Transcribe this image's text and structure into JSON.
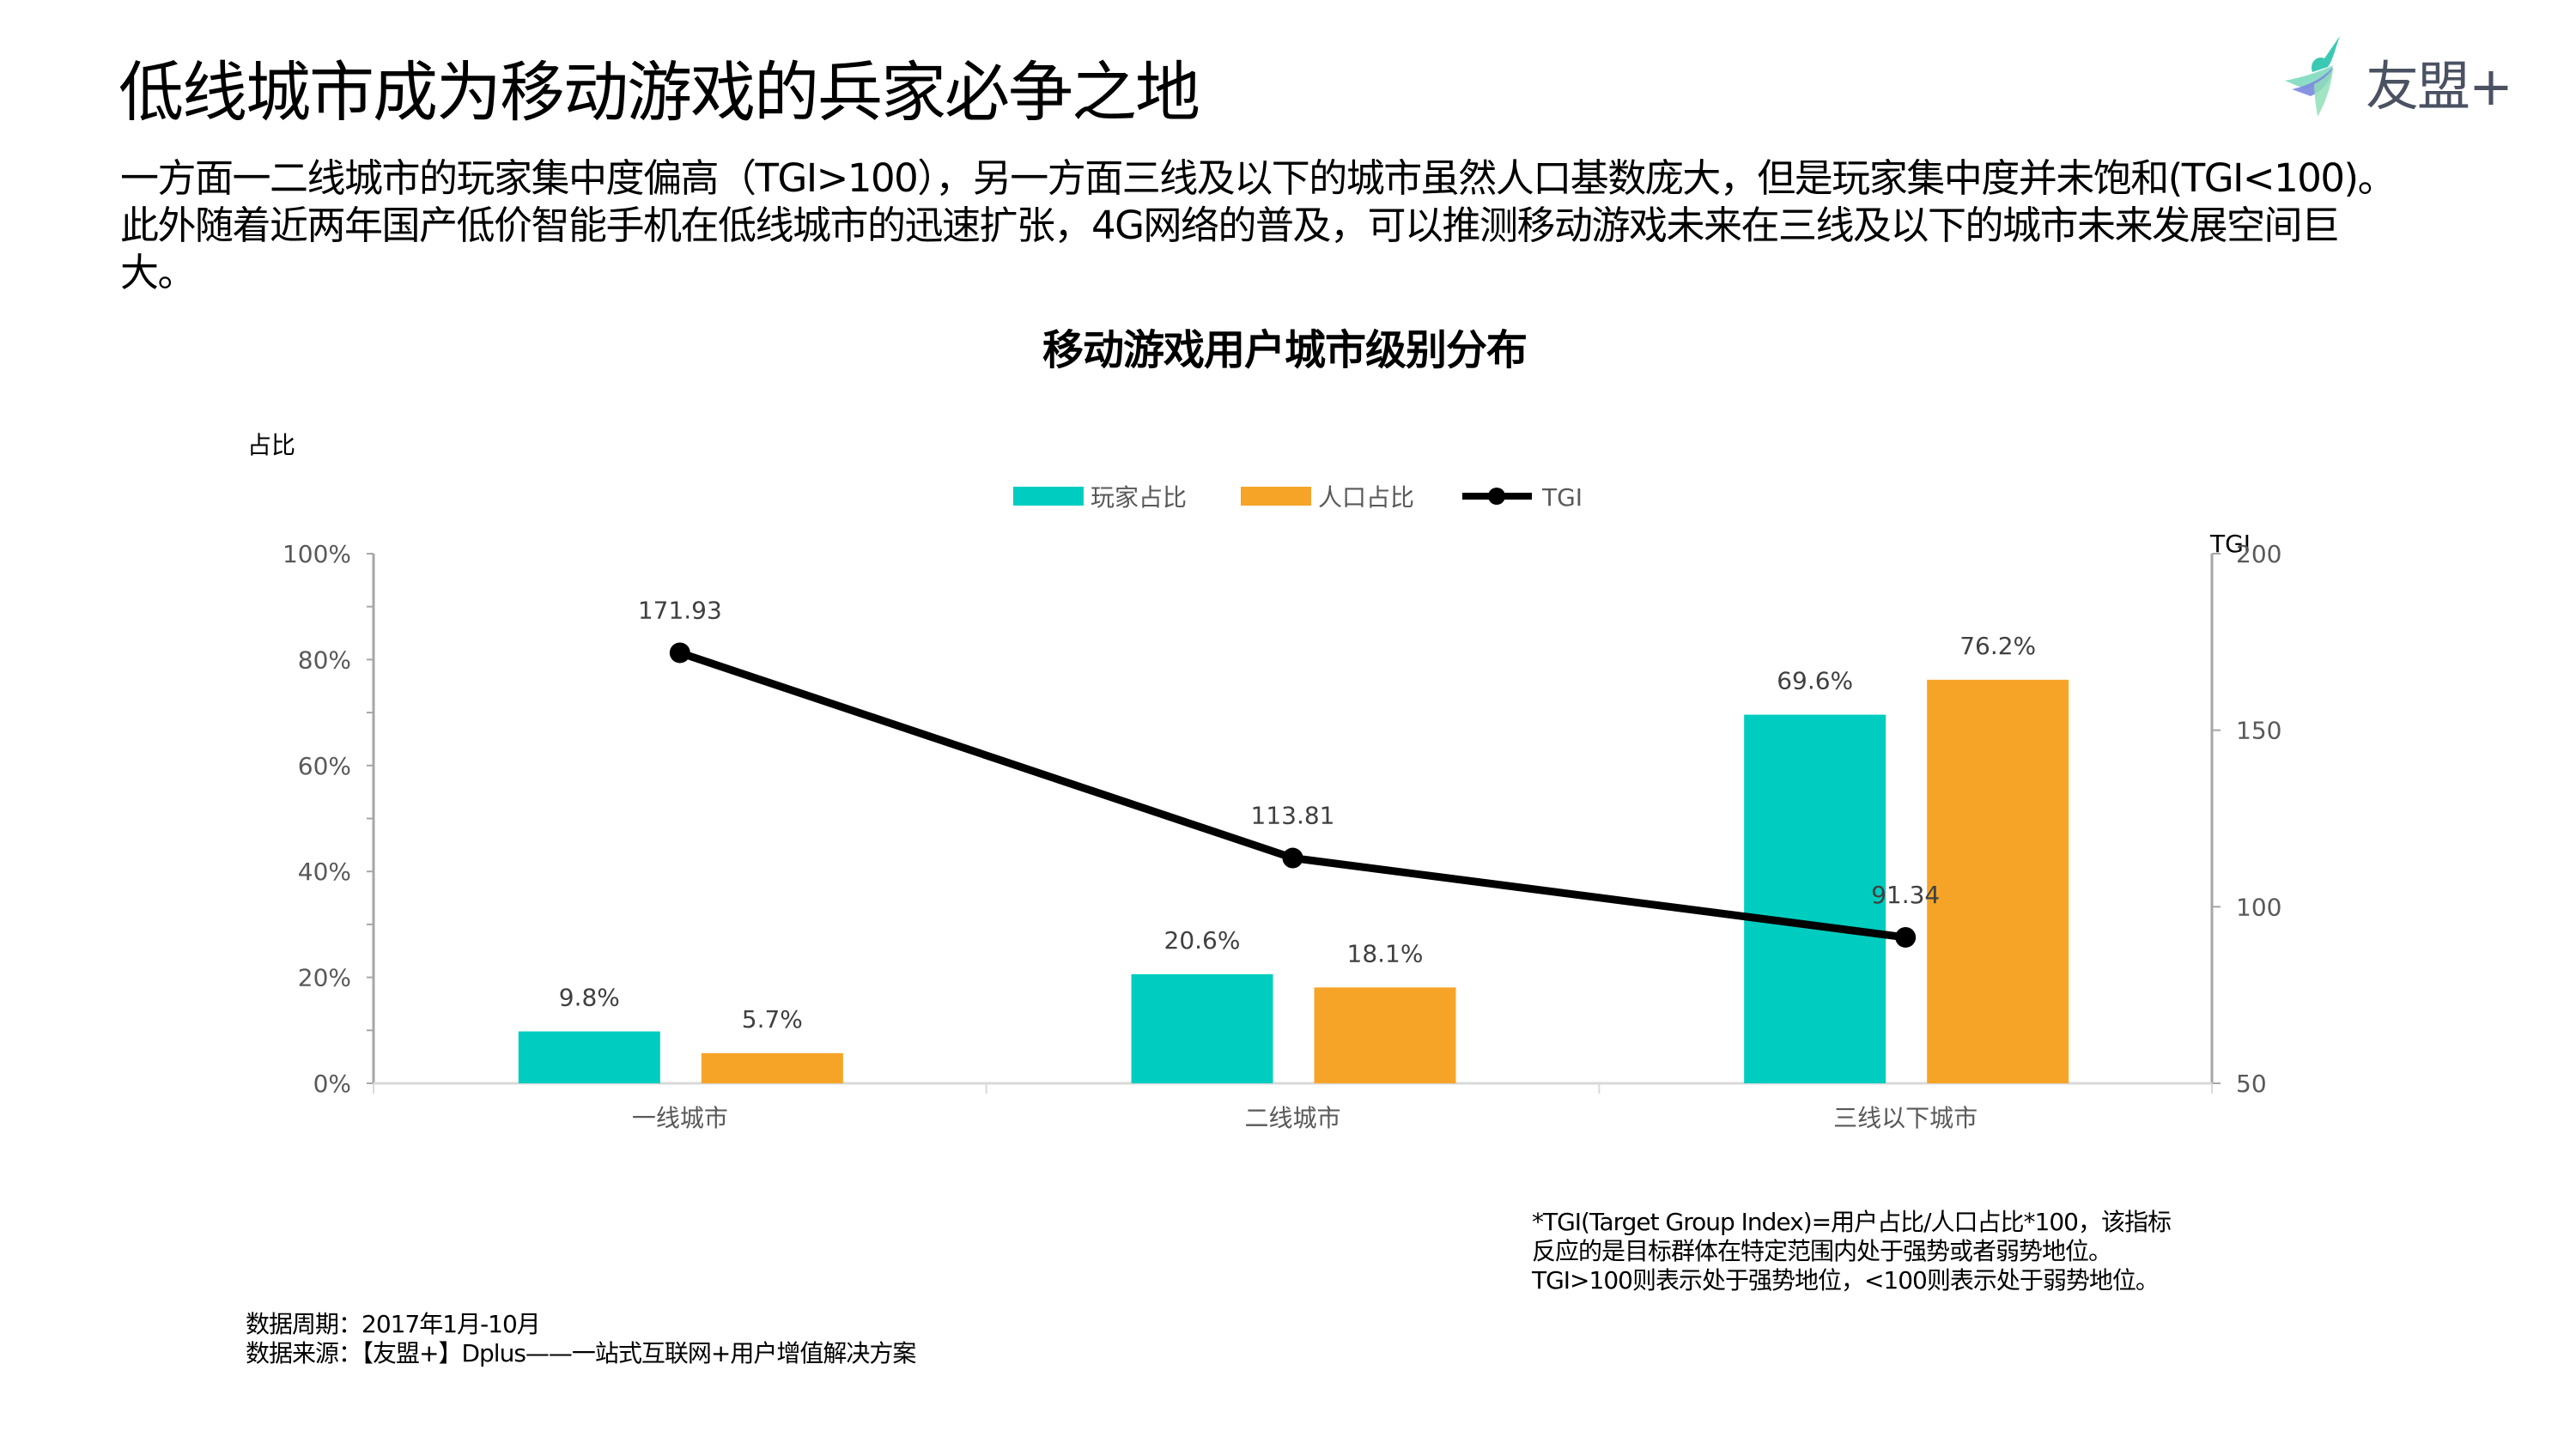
{
  "page": {
    "title": "低线城市成为移动游戏的兵家必争之地",
    "body_lines": [
      "一方面一二线城市的玩家集中度偏高（TGI>100），另一方面三线及以下的城市虽然人口基数庞大，但是玩家集中度并未饱和(TGI<100)。",
      "此外随着近两年国产低价智能手机在低线城市的迅速扩张，4G网络的普及，可以推测移动游戏未来在三线及以下的城市未来发展空间巨",
      "大。"
    ]
  },
  "logo": {
    "text": "友盟+",
    "icon": "umeng-bird-logo-icon"
  },
  "chart_data": {
    "type": "bar",
    "title": "移动游戏用户城市级别分布",
    "ylabel": "占比",
    "y2label": "TGI",
    "categories": [
      "一线城市",
      "二线城市",
      "三线以下城市"
    ],
    "series": [
      {
        "name": "玩家占比",
        "type": "bar",
        "axis": "left",
        "color": "#00cdbf",
        "values": [
          9.8,
          20.6,
          69.6
        ],
        "labels": [
          "9.8%",
          "20.6%",
          "69.6%"
        ]
      },
      {
        "name": "人口占比",
        "type": "bar",
        "axis": "left",
        "color": "#f6a428",
        "values": [
          5.7,
          18.1,
          76.2
        ],
        "labels": [
          "5.7%",
          "18.1%",
          "76.2%"
        ]
      },
      {
        "name": "TGI",
        "type": "line",
        "axis": "right",
        "color": "#000000",
        "values": [
          171.93,
          113.81,
          91.34
        ],
        "labels": [
          "171.93",
          "113.81",
          "91.34"
        ]
      }
    ],
    "ylim": [
      0,
      100
    ],
    "y_ticks": [
      0,
      20,
      40,
      60,
      80,
      100
    ],
    "y_tick_labels": [
      "0%",
      "20%",
      "40%",
      "60%",
      "80%",
      "100%"
    ],
    "y2lim": [
      50,
      200
    ],
    "y2_ticks": [
      50,
      100,
      150,
      200
    ],
    "y2_tick_labels": [
      "50",
      "100",
      "150",
      "200"
    ],
    "legend_position": "top-center",
    "grid": false
  },
  "footnote_lines": [
    "*TGI(Target Group Index)=用户占比/人口占比*100，该指标",
    "反应的是目标群体在特定范围内处于强势或者弱势地位。",
    "TGI>100则表示处于强势地位，<100则表示处于弱势地位。"
  ],
  "source_lines": [
    "数据周期：2017年1月-10月",
    "数据来源：【友盟+】Dplus——一站式互联网+用户增值解决方案"
  ]
}
